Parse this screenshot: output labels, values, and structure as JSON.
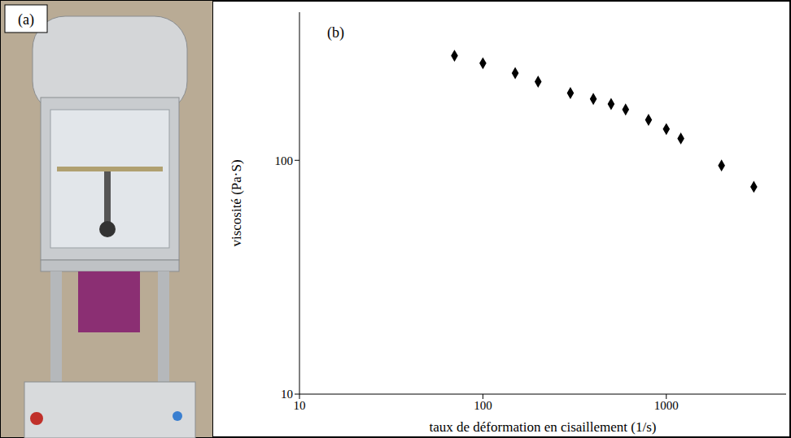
{
  "photo": {
    "label": "(a)"
  },
  "chart_data": {
    "type": "scatter",
    "label": "(b)",
    "x_label": "taux de déformation en cisaillement (1/s)",
    "y_label": "viscosité (Pa·S)",
    "x": [
      70,
      100,
      150,
      200,
      300,
      400,
      500,
      600,
      800,
      1000,
      1200,
      2000,
      3000
    ],
    "values": [
      280,
      260,
      236,
      217,
      194,
      183,
      174,
      165,
      149,
      136,
      124,
      95,
      77
    ],
    "xlim": [
      10,
      4500
    ],
    "ylim": [
      10,
      430
    ],
    "xticks": [
      10,
      100,
      1000
    ],
    "yticks": [
      10,
      100
    ],
    "log": true,
    "color": "#000000",
    "marker": "diamond"
  }
}
